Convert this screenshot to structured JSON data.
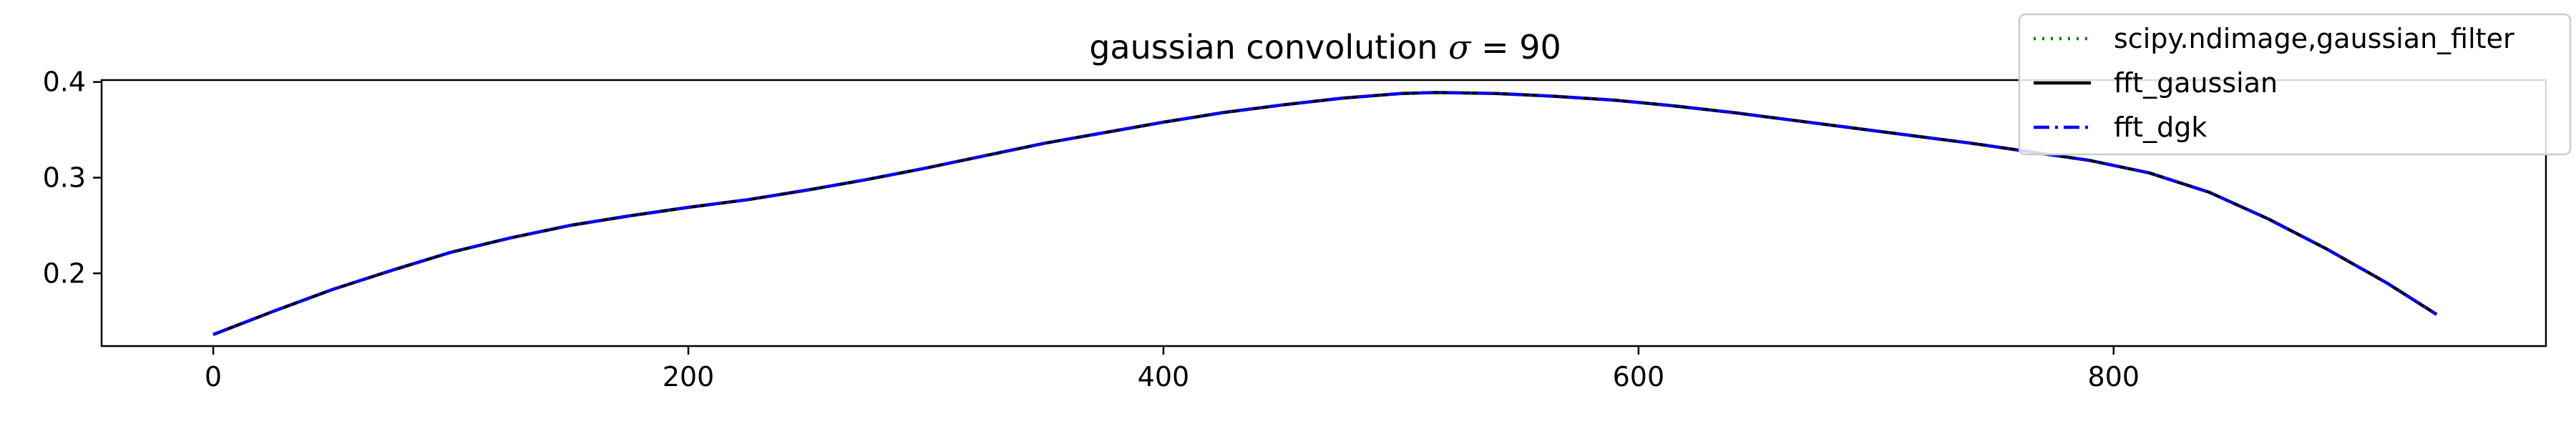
{
  "chart_data": {
    "type": "line",
    "title": "gaussian convolution σ = 90",
    "title_parts": {
      "prefix": "gaussian convolution ",
      "symbol": "σ",
      "suffix": " = 90"
    },
    "xlabel": "",
    "ylabel": "",
    "xlim": [
      -47,
      982
    ],
    "ylim": [
      0.124,
      0.402
    ],
    "x_ticks": [
      0,
      200,
      400,
      600,
      800
    ],
    "x_tick_labels": [
      "0",
      "200",
      "400",
      "600",
      "800"
    ],
    "y_ticks": [
      0.2,
      0.3,
      0.4
    ],
    "y_tick_labels": [
      "0.2",
      "0.3",
      "0.4"
    ],
    "grid": false,
    "legend_position": "top-right",
    "x": [
      0,
      25,
      50,
      75,
      100,
      125,
      150,
      175,
      200,
      225,
      250,
      275,
      300,
      325,
      350,
      375,
      400,
      425,
      450,
      475,
      500,
      515,
      540,
      565,
      590,
      615,
      640,
      665,
      690,
      715,
      740,
      765,
      790,
      815,
      840,
      865,
      890,
      915,
      936
    ],
    "series": [
      {
        "name": "scipy.ndimage,gaussian_filter",
        "color": "#008000",
        "dash": "dotted",
        "values": [
          0.136,
          0.16,
          0.183,
          0.203,
          0.222,
          0.237,
          0.25,
          0.26,
          0.269,
          0.277,
          0.287,
          0.298,
          0.31,
          0.323,
          0.336,
          0.347,
          0.358,
          0.368,
          0.376,
          0.383,
          0.388,
          0.389,
          0.388,
          0.385,
          0.381,
          0.375,
          0.368,
          0.36,
          0.352,
          0.344,
          0.336,
          0.327,
          0.318,
          0.305,
          0.285,
          0.257,
          0.225,
          0.19,
          0.157
        ]
      },
      {
        "name": "fft_gaussian",
        "color": "#000000",
        "dash": "solid",
        "values": [
          0.136,
          0.16,
          0.183,
          0.203,
          0.222,
          0.237,
          0.25,
          0.26,
          0.269,
          0.277,
          0.287,
          0.298,
          0.31,
          0.323,
          0.336,
          0.347,
          0.358,
          0.368,
          0.376,
          0.383,
          0.388,
          0.389,
          0.388,
          0.385,
          0.381,
          0.375,
          0.368,
          0.36,
          0.352,
          0.344,
          0.336,
          0.327,
          0.318,
          0.305,
          0.285,
          0.257,
          0.225,
          0.19,
          0.157
        ]
      },
      {
        "name": "fft_dgk",
        "color": "#0000ff",
        "dash": "dashdot",
        "values": [
          0.136,
          0.16,
          0.183,
          0.203,
          0.222,
          0.237,
          0.25,
          0.26,
          0.269,
          0.277,
          0.287,
          0.298,
          0.31,
          0.323,
          0.336,
          0.347,
          0.358,
          0.368,
          0.376,
          0.383,
          0.388,
          0.389,
          0.388,
          0.385,
          0.381,
          0.375,
          0.368,
          0.36,
          0.352,
          0.344,
          0.336,
          0.327,
          0.318,
          0.305,
          0.285,
          0.257,
          0.225,
          0.19,
          0.157
        ]
      }
    ]
  }
}
